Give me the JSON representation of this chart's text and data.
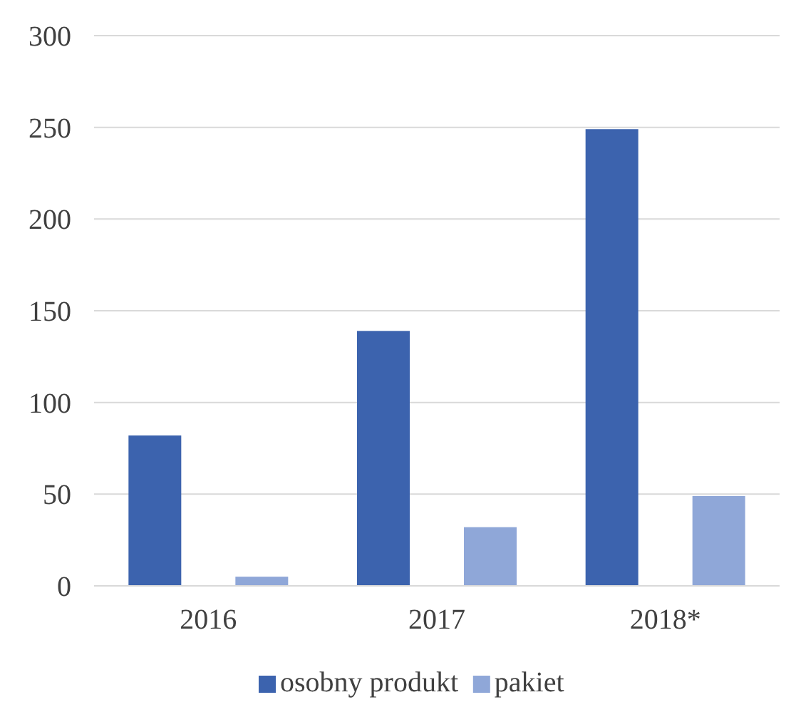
{
  "chart_data": {
    "type": "bar",
    "categories": [
      "2016",
      "2017",
      "2018*"
    ],
    "series": [
      {
        "name": "osobny produkt",
        "color": "#3c63ae",
        "values": [
          82,
          139,
          249
        ]
      },
      {
        "name": "pakiet",
        "color": "#8fa7d8",
        "values": [
          5,
          32,
          49
        ]
      }
    ],
    "ylim": [
      0,
      300
    ],
    "yticks": [
      0,
      50,
      100,
      150,
      200,
      250,
      300
    ],
    "grid": "y",
    "legend": "bottom"
  }
}
